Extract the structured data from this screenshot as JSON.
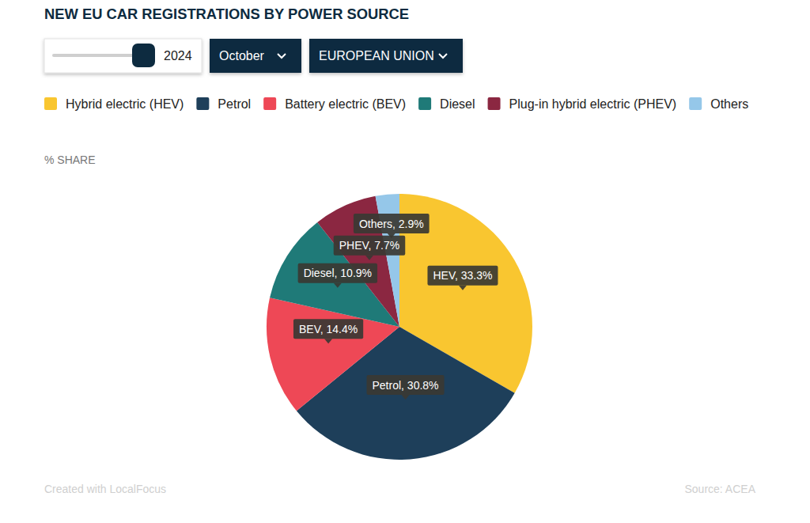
{
  "chart_data": {
    "type": "pie",
    "title": "NEW EU CAR REGISTRATIONS BY POWER SOURCE",
    "subtitle": "% SHARE",
    "categories": [
      "Hybrid electric (HEV)",
      "Petrol",
      "Battery electric (BEV)",
      "Diesel",
      "Plug-in hybrid electric (PHEV)",
      "Others"
    ],
    "values": [
      33.3,
      30.8,
      14.4,
      10.9,
      7.7,
      2.9
    ],
    "value_labels": [
      "HEV, 33.3%",
      "Petrol, 30.8%",
      "BEV, 14.4%",
      "Diesel, 10.9%",
      "PHEV, 7.7%",
      "Others, 2.9%"
    ],
    "colors": [
      "#f9c630",
      "#1e3f5a",
      "#ee4856",
      "#1f7a78",
      "#8b2741",
      "#95c7e9"
    ],
    "legend": "top",
    "data_labels": true
  },
  "controls": {
    "year": "2024",
    "month": "October",
    "region": "EUROPEAN UNION"
  },
  "footer": {
    "credit": "Created with LocalFocus",
    "source": "Source: ACEA"
  }
}
